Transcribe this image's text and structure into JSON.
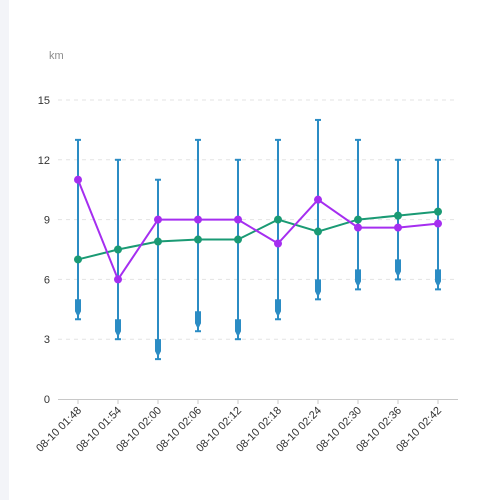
{
  "chart": {
    "unit": "km"
  },
  "chart_data": {
    "type": "line",
    "ylim": [
      0,
      15
    ],
    "yticks": [
      0,
      3,
      6,
      9,
      12,
      15
    ],
    "grid": "horizontal-dashed",
    "categories": [
      "08-10 01:48",
      "08-10 01:54",
      "08-10 02:00",
      "08-10 02:06",
      "08-10 02:12",
      "08-10 02:18",
      "08-10 02:24",
      "08-10 02:30",
      "08-10 02:36",
      "08-10 02:42"
    ],
    "series": [
      {
        "color": "#1a9a74",
        "values": [
          7.0,
          7.5,
          7.9,
          8.0,
          8.0,
          9.0,
          8.4,
          9.0,
          9.2,
          9.4
        ]
      },
      {
        "color": "#a52ef0",
        "values": [
          11.0,
          6.0,
          9.0,
          9.0,
          9.0,
          7.8,
          10.0,
          8.6,
          8.6,
          8.8
        ]
      }
    ],
    "ranges": {
      "color": "#2b8cc4",
      "high": [
        13,
        12,
        11,
        13,
        12,
        13,
        14,
        13,
        12,
        12
      ],
      "low": [
        4,
        3,
        2,
        3.4,
        3,
        4,
        5,
        5.5,
        6,
        5.5
      ]
    }
  }
}
